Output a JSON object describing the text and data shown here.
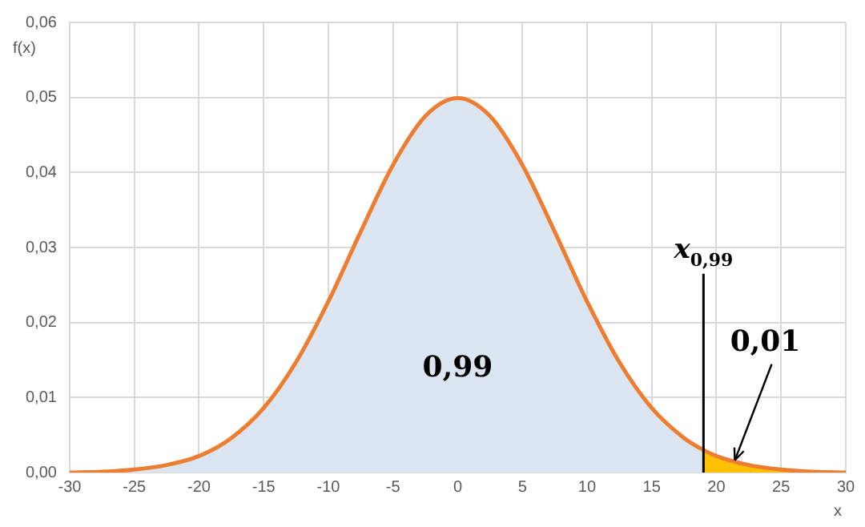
{
  "chart_data": {
    "type": "area",
    "xlabel": "x",
    "ylabel": "f(x)",
    "grid": true,
    "legend": false,
    "marker": "none",
    "xlim": [
      -30,
      30
    ],
    "xticks": [
      -30,
      -25,
      -20,
      -15,
      -10,
      -5,
      0,
      5,
      10,
      15,
      20,
      25,
      30
    ],
    "ylim": [
      0,
      0.06
    ],
    "yticks": [
      {
        "value": 0,
        "label": "0,00"
      },
      {
        "value": 0.01,
        "label": "0,01"
      },
      {
        "value": 0.02,
        "label": "0,02"
      },
      {
        "value": 0.03,
        "label": "0,03"
      },
      {
        "value": 0.04,
        "label": "0,04"
      },
      {
        "value": 0.05,
        "label": "0,05"
      },
      {
        "value": 0.06,
        "label": "0,06"
      }
    ],
    "series": [
      {
        "type": "area",
        "color": "#dce6f2",
        "x": [
          -30,
          -27.5,
          -25,
          -22.5,
          -20,
          -17.5,
          -15,
          -12.5,
          -10,
          -7.5,
          -5,
          -2.5,
          0,
          2.5,
          5,
          7.5,
          10,
          12.5,
          15,
          17.5,
          19
        ],
        "values": [
          0,
          0.0001,
          0.0004,
          0.001,
          0.0022,
          0.0046,
          0.0086,
          0.0147,
          0.0228,
          0.0321,
          0.041,
          0.0475,
          0.0499,
          0.0475,
          0.041,
          0.0321,
          0.0228,
          0.0147,
          0.0086,
          0.0046,
          0.003
        ]
      },
      {
        "type": "area",
        "color": "#ffc000",
        "x": [
          19,
          20,
          22.5,
          25,
          27.5,
          30
        ],
        "values": [
          0.003,
          0.0022,
          0.001,
          0.0004,
          0.0001,
          0
        ]
      },
      {
        "type": "line",
        "color": "#ed7d31",
        "x": [
          -30,
          -27.5,
          -25,
          -22.5,
          -20,
          -17.5,
          -15,
          -12.5,
          -10,
          -7.5,
          -5,
          -2.5,
          0,
          2.5,
          5,
          7.5,
          10,
          12.5,
          15,
          17.5,
          19,
          20,
          22.5,
          25,
          27.5,
          30
        ],
        "values": [
          0,
          0.0001,
          0.0004,
          0.001,
          0.0022,
          0.0046,
          0.0086,
          0.0147,
          0.0228,
          0.0321,
          0.041,
          0.0475,
          0.0499,
          0.0475,
          0.041,
          0.0321,
          0.0228,
          0.0147,
          0.0086,
          0.0046,
          0.003,
          0.0022,
          0.001,
          0.0004,
          0.0001,
          0
        ]
      }
    ],
    "ref_lines": [
      {
        "axis": "x",
        "value": 19,
        "label": "x$_{0,99}$",
        "color": "#000000"
      }
    ],
    "annotations": [
      "0,99",
      {
        "text": "0,01",
        "x": 21.3,
        "y": 0.0012
      }
    ]
  }
}
